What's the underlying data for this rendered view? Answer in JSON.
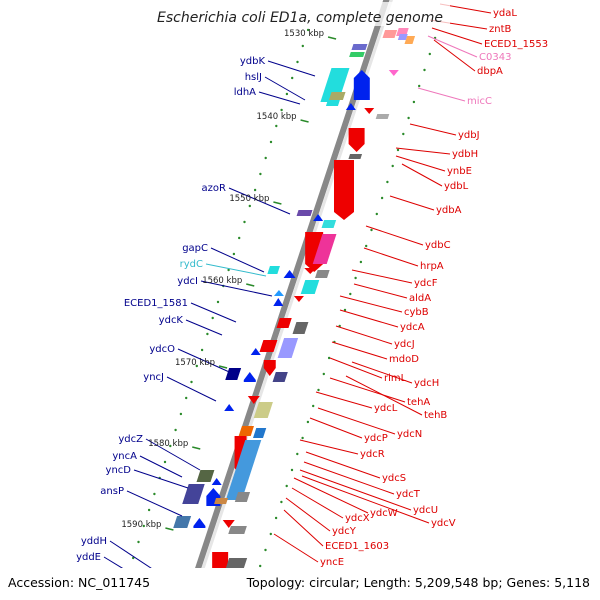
{
  "title": "Escherichia coli ED1a, complete genome",
  "footer": {
    "accession": "Accession: NC_011745",
    "topology": "Topology: circular; Length: 5,209,548 bp; Genes: 5,118"
  },
  "colors": {
    "left_strand_label": "#00008b",
    "right_strand_label": "#dd0000",
    "rna_label_cyan": "#33bbcc",
    "rna_label_pink": "#ee77bb",
    "backbone": "#888888",
    "tick_dot": "#2a8a2a"
  },
  "ticks": [
    "1530 kbp",
    "1540 kbp",
    "1550 kbp",
    "1560 kbp",
    "1570 kbp",
    "1580 kbp",
    "1590 kbp"
  ],
  "labels": {
    "left": [
      "ydbK",
      "hslJ",
      "ldhA",
      "azoR",
      "gapC",
      "rydC",
      "ydcI",
      "ECED1_1581",
      "ydcK",
      "ydcO",
      "yncJ",
      "ydcZ",
      "yncA",
      "yncD",
      "ansP",
      "yddH",
      "yddE"
    ],
    "right": [
      "ydaL",
      "zntB",
      "ECED1_1553",
      "C0343",
      "dbpA",
      "micC",
      "ydbJ",
      "ydbH",
      "ynbE",
      "ydbL",
      "ydbA",
      "ydbC",
      "hrpA",
      "ydcF",
      "aldA",
      "cybB",
      "ydcA",
      "ydcJ",
      "mdoD",
      "rimL",
      "ydcH",
      "tehA",
      "ydcL",
      "tehB",
      "ydcN",
      "ydcP",
      "ydcR",
      "ydcS",
      "ydcT",
      "ydcU",
      "ydcW",
      "ydcV",
      "ydcX",
      "ydcY",
      "ECED1_1603",
      "yncE"
    ]
  }
}
